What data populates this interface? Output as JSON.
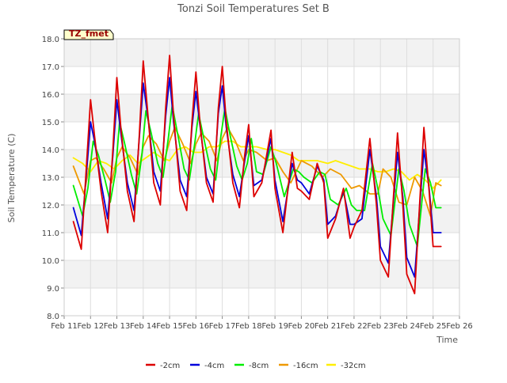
{
  "chart_data": {
    "type": "line",
    "title": "Tonzi Soil Temperatures Set B",
    "xlabel": "Time",
    "ylabel": "Soil Temperature (C)",
    "ylim": [
      8.0,
      18.0
    ],
    "yticks": [
      "8.0",
      "9.0",
      "10.0",
      "11.0",
      "12.0",
      "13.0",
      "14.0",
      "15.0",
      "16.0",
      "17.0",
      "18.0"
    ],
    "xlim": [
      11,
      26
    ],
    "xticks": [
      "Feb 11",
      "Feb 12",
      "Feb 13",
      "Feb 14",
      "Feb 15",
      "Feb 16",
      "Feb 17",
      "Feb 18",
      "Feb 19",
      "Feb 20",
      "Feb 21",
      "Feb 22",
      "Feb 23",
      "Feb 24",
      "Feb 25",
      "Feb 26"
    ],
    "grid": true,
    "legend_position": "bottom",
    "annotation": "TZ_fmet",
    "colors": {
      "-2cm": "#dd0000",
      "-4cm": "#0000dd",
      "-8cm": "#00ee00",
      "-16cm": "#ee9900",
      "-32cm": "#ffee00"
    },
    "series": [
      {
        "name": "-2cm",
        "x": [
          11.35,
          11.65,
          11.85,
          12.0,
          12.15,
          12.4,
          12.65,
          12.85,
          13.0,
          13.15,
          13.4,
          13.65,
          13.85,
          14.0,
          14.2,
          14.4,
          14.65,
          14.85,
          15.0,
          15.15,
          15.4,
          15.65,
          15.85,
          16.0,
          16.15,
          16.4,
          16.65,
          16.85,
          17.0,
          17.15,
          17.4,
          17.65,
          17.85,
          18.0,
          18.2,
          18.5,
          18.85,
          19.0,
          19.3,
          19.65,
          19.85,
          20.0,
          20.3,
          20.6,
          20.85,
          21.0,
          21.3,
          21.6,
          21.85,
          22.0,
          22.3,
          22.6,
          22.85,
          23.0,
          23.3,
          23.65,
          23.85,
          24.0,
          24.3,
          24.65,
          24.85,
          25.0,
          25.3
        ],
        "values": [
          11.4,
          10.4,
          13.5,
          15.8,
          14.5,
          12.5,
          11.0,
          14.0,
          16.6,
          14.8,
          12.5,
          11.4,
          14.5,
          17.2,
          15.0,
          12.8,
          12.0,
          15.5,
          17.4,
          15.2,
          12.5,
          11.8,
          15.0,
          16.8,
          15.0,
          12.8,
          12.1,
          15.5,
          17.0,
          15.0,
          12.8,
          11.9,
          13.8,
          14.9,
          12.3,
          12.8,
          14.7,
          12.6,
          11.0,
          13.9,
          12.6,
          12.5,
          12.2,
          13.5,
          12.8,
          10.8,
          11.5,
          12.6,
          10.8,
          11.2,
          11.8,
          14.4,
          12.0,
          10.0,
          9.4,
          14.6,
          12.0,
          9.5,
          8.8,
          14.8,
          12.5,
          10.5,
          10.5
        ]
      },
      {
        "name": "-4cm",
        "x": [
          11.35,
          11.65,
          11.85,
          12.0,
          12.15,
          12.4,
          12.65,
          12.85,
          13.0,
          13.15,
          13.4,
          13.65,
          13.85,
          14.0,
          14.2,
          14.4,
          14.65,
          14.85,
          15.0,
          15.15,
          15.4,
          15.65,
          15.85,
          16.0,
          16.15,
          16.4,
          16.65,
          16.85,
          17.0,
          17.15,
          17.4,
          17.65,
          17.85,
          18.0,
          18.2,
          18.5,
          18.85,
          19.0,
          19.3,
          19.65,
          19.85,
          20.0,
          20.3,
          20.6,
          20.85,
          21.0,
          21.3,
          21.6,
          21.85,
          22.0,
          22.3,
          22.6,
          22.85,
          23.0,
          23.3,
          23.65,
          23.85,
          24.0,
          24.3,
          24.65,
          24.85,
          25.0,
          25.3
        ],
        "values": [
          11.9,
          10.9,
          13.2,
          15.0,
          14.3,
          12.8,
          11.5,
          13.8,
          15.8,
          14.6,
          12.8,
          11.8,
          14.4,
          16.4,
          15.0,
          13.2,
          12.5,
          15.2,
          16.6,
          15.0,
          12.9,
          12.3,
          14.8,
          16.1,
          14.9,
          13.0,
          12.4,
          15.3,
          16.3,
          14.8,
          13.1,
          12.3,
          13.6,
          14.5,
          12.7,
          12.9,
          14.4,
          12.9,
          11.4,
          13.5,
          12.9,
          12.8,
          12.4,
          13.4,
          12.9,
          11.3,
          11.6,
          12.5,
          11.3,
          11.3,
          11.5,
          14.0,
          12.3,
          10.5,
          9.9,
          13.9,
          12.3,
          10.1,
          9.4,
          14.0,
          12.6,
          11.0,
          11.0
        ]
      },
      {
        "name": "-8cm",
        "x": [
          11.35,
          11.7,
          11.9,
          12.1,
          12.3,
          12.55,
          12.75,
          12.95,
          13.1,
          13.3,
          13.55,
          13.75,
          13.95,
          14.1,
          14.3,
          14.55,
          14.75,
          14.95,
          15.1,
          15.3,
          15.55,
          15.75,
          15.95,
          16.1,
          16.3,
          16.55,
          16.75,
          16.95,
          17.1,
          17.3,
          17.55,
          17.75,
          17.95,
          18.1,
          18.3,
          18.55,
          18.85,
          19.05,
          19.35,
          19.7,
          19.9,
          20.1,
          20.4,
          20.7,
          20.9,
          21.1,
          21.4,
          21.7,
          21.9,
          22.1,
          22.4,
          22.7,
          22.9,
          23.1,
          23.4,
          23.7,
          23.9,
          24.1,
          24.4,
          24.7,
          24.9,
          25.1,
          25.3
        ],
        "values": [
          12.7,
          11.6,
          12.6,
          14.3,
          13.8,
          12.9,
          12.1,
          13.2,
          15.0,
          14.2,
          13.1,
          12.4,
          13.8,
          15.4,
          14.6,
          13.5,
          13.0,
          14.4,
          15.6,
          14.6,
          13.3,
          12.9,
          14.2,
          15.3,
          14.4,
          13.3,
          12.9,
          14.5,
          15.5,
          14.5,
          13.4,
          12.9,
          13.5,
          14.4,
          13.2,
          13.1,
          14.1,
          13.5,
          12.3,
          13.3,
          13.2,
          13.0,
          12.8,
          13.2,
          13.1,
          12.2,
          12.0,
          12.6,
          12.0,
          11.8,
          11.8,
          13.5,
          12.6,
          11.5,
          10.9,
          13.3,
          12.5,
          11.3,
          10.5,
          13.3,
          12.8,
          11.9,
          11.9
        ]
      },
      {
        "name": "-16cm",
        "x": [
          11.35,
          11.75,
          12.0,
          12.2,
          12.5,
          12.8,
          13.0,
          13.2,
          13.5,
          13.8,
          14.0,
          14.2,
          14.5,
          14.8,
          15.0,
          15.2,
          15.5,
          15.8,
          16.0,
          16.2,
          16.5,
          16.8,
          17.0,
          17.2,
          17.5,
          17.8,
          18.0,
          18.3,
          18.7,
          19.0,
          19.3,
          19.6,
          20.0,
          20.4,
          20.8,
          21.1,
          21.5,
          21.9,
          22.2,
          22.6,
          22.9,
          23.1,
          23.4,
          23.7,
          24.0,
          24.3,
          24.6,
          24.9,
          25.1,
          25.3
        ],
        "values": [
          13.4,
          12.4,
          13.6,
          13.7,
          13.3,
          12.8,
          13.7,
          14.1,
          13.7,
          13.1,
          14.1,
          14.5,
          14.2,
          13.6,
          14.3,
          14.8,
          14.2,
          13.5,
          14.2,
          14.6,
          14.3,
          13.6,
          14.4,
          14.8,
          14.3,
          13.6,
          14.0,
          13.9,
          13.6,
          13.7,
          13.2,
          12.8,
          13.6,
          13.4,
          13.0,
          13.3,
          13.1,
          12.6,
          12.7,
          12.4,
          12.4,
          13.3,
          13.0,
          12.1,
          12.0,
          13.0,
          12.5,
          11.6,
          12.8,
          12.7
        ]
      },
      {
        "name": "-32cm",
        "x": [
          11.35,
          11.7,
          12.0,
          12.3,
          12.6,
          12.9,
          13.2,
          13.5,
          13.8,
          14.1,
          14.4,
          14.7,
          15.0,
          15.3,
          15.6,
          15.9,
          16.2,
          16.5,
          16.8,
          17.1,
          17.4,
          17.7,
          18.0,
          18.3,
          18.7,
          19.0,
          19.3,
          19.6,
          19.9,
          20.2,
          20.6,
          21.0,
          21.3,
          21.6,
          21.9,
          22.2,
          22.6,
          22.9,
          23.2,
          23.5,
          23.8,
          24.1,
          24.4,
          24.7,
          25.0,
          25.3
        ],
        "values": [
          13.7,
          13.5,
          13.2,
          13.6,
          13.5,
          13.3,
          13.6,
          13.8,
          13.5,
          13.7,
          13.9,
          13.7,
          13.6,
          14.0,
          14.1,
          13.9,
          13.9,
          14.1,
          14.1,
          14.3,
          14.3,
          14.1,
          14.1,
          14.1,
          14.0,
          14.0,
          13.9,
          13.8,
          13.6,
          13.6,
          13.6,
          13.5,
          13.6,
          13.5,
          13.4,
          13.3,
          13.3,
          13.2,
          13.2,
          13.3,
          13.2,
          12.9,
          13.1,
          12.9,
          12.6,
          12.9
        ]
      }
    ]
  }
}
